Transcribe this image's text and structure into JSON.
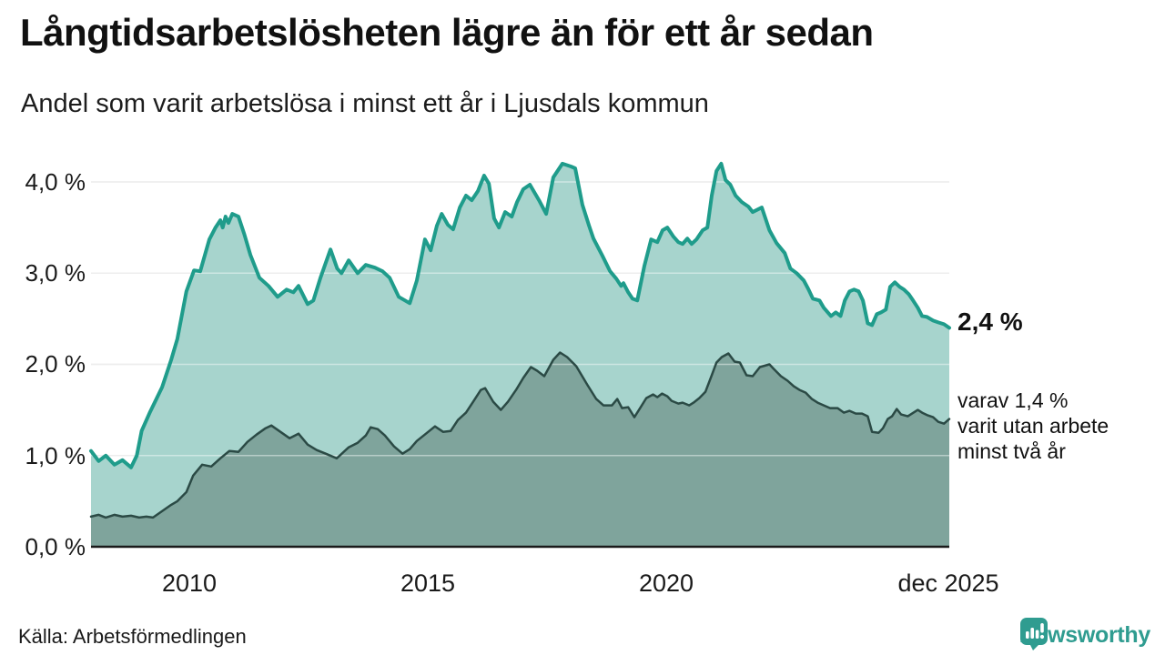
{
  "header": {
    "title": "Långtidsarbetslösheten lägre än för ett år sedan",
    "subtitle": "Andel som varit arbetslösa i minst ett år i Ljusdals kommun"
  },
  "chart_data": {
    "type": "area",
    "title": "Långtidsarbetslösheten lägre än för ett år sedan",
    "subtitle": "Andel som varit arbetslösa i minst ett år i Ljusdals kommun",
    "unit": "%",
    "x_domain": [
      2007.94,
      2025.93
    ],
    "y_domain": [
      0,
      4.0
    ],
    "grid": "horizontal",
    "legend_position": "none",
    "y_ticks": [
      {
        "value": 4.0,
        "label": "4,0 %"
      },
      {
        "value": 3.0,
        "label": "3,0 %"
      },
      {
        "value": 2.0,
        "label": "2,0 %"
      },
      {
        "value": 1.0,
        "label": "1,0 %"
      },
      {
        "value": 0.0,
        "label": "0,0 %"
      }
    ],
    "x_ticks": [
      {
        "value": 2010,
        "label": "2010"
      },
      {
        "value": 2015,
        "label": "2015"
      },
      {
        "value": 2020,
        "label": "2020"
      },
      {
        "value": 2025.93,
        "label": "dec 2025"
      }
    ],
    "series": [
      {
        "name": "arbetslösa minst ett år",
        "stroke": "#1f9c8b",
        "fill": "#a7d4cd",
        "line_width": 4,
        "end_value": "2,4 %",
        "points": [
          [
            2007.94,
            1.05
          ],
          [
            2008.1,
            0.94
          ],
          [
            2008.25,
            1.0
          ],
          [
            2008.43,
            0.9
          ],
          [
            2008.6,
            0.95
          ],
          [
            2008.78,
            0.87
          ],
          [
            2008.9,
            1.0
          ],
          [
            2009.0,
            1.27
          ],
          [
            2009.18,
            1.48
          ],
          [
            2009.31,
            1.62
          ],
          [
            2009.43,
            1.75
          ],
          [
            2009.62,
            2.05
          ],
          [
            2009.75,
            2.28
          ],
          [
            2009.94,
            2.8
          ],
          [
            2010.1,
            3.03
          ],
          [
            2010.23,
            3.02
          ],
          [
            2010.42,
            3.37
          ],
          [
            2010.55,
            3.5
          ],
          [
            2010.65,
            3.58
          ],
          [
            2010.7,
            3.5
          ],
          [
            2010.76,
            3.62
          ],
          [
            2010.82,
            3.55
          ],
          [
            2010.9,
            3.65
          ],
          [
            2011.03,
            3.62
          ],
          [
            2011.15,
            3.43
          ],
          [
            2011.28,
            3.2
          ],
          [
            2011.47,
            2.95
          ],
          [
            2011.66,
            2.86
          ],
          [
            2011.85,
            2.74
          ],
          [
            2012.04,
            2.82
          ],
          [
            2012.18,
            2.79
          ],
          [
            2012.29,
            2.86
          ],
          [
            2012.48,
            2.66
          ],
          [
            2012.6,
            2.7
          ],
          [
            2012.75,
            2.95
          ],
          [
            2012.96,
            3.26
          ],
          [
            2013.1,
            3.05
          ],
          [
            2013.19,
            3.0
          ],
          [
            2013.34,
            3.14
          ],
          [
            2013.53,
            3.0
          ],
          [
            2013.7,
            3.09
          ],
          [
            2013.89,
            3.06
          ],
          [
            2014.05,
            3.02
          ],
          [
            2014.2,
            2.95
          ],
          [
            2014.39,
            2.74
          ],
          [
            2014.62,
            2.67
          ],
          [
            2014.77,
            2.92
          ],
          [
            2014.94,
            3.37
          ],
          [
            2015.06,
            3.25
          ],
          [
            2015.19,
            3.52
          ],
          [
            2015.29,
            3.65
          ],
          [
            2015.42,
            3.53
          ],
          [
            2015.53,
            3.48
          ],
          [
            2015.67,
            3.72
          ],
          [
            2015.8,
            3.85
          ],
          [
            2015.92,
            3.8
          ],
          [
            2016.05,
            3.9
          ],
          [
            2016.18,
            4.07
          ],
          [
            2016.28,
            3.98
          ],
          [
            2016.39,
            3.6
          ],
          [
            2016.49,
            3.5
          ],
          [
            2016.62,
            3.67
          ],
          [
            2016.76,
            3.62
          ],
          [
            2016.87,
            3.78
          ],
          [
            2017.0,
            3.92
          ],
          [
            2017.14,
            3.97
          ],
          [
            2017.33,
            3.8
          ],
          [
            2017.48,
            3.65
          ],
          [
            2017.63,
            4.05
          ],
          [
            2017.82,
            4.2
          ],
          [
            2018.0,
            4.17
          ],
          [
            2018.09,
            4.15
          ],
          [
            2018.24,
            3.75
          ],
          [
            2018.38,
            3.52
          ],
          [
            2018.47,
            3.38
          ],
          [
            2018.66,
            3.19
          ],
          [
            2018.82,
            3.02
          ],
          [
            2018.95,
            2.94
          ],
          [
            2019.05,
            2.86
          ],
          [
            2019.1,
            2.89
          ],
          [
            2019.2,
            2.79
          ],
          [
            2019.29,
            2.72
          ],
          [
            2019.39,
            2.7
          ],
          [
            2019.54,
            3.08
          ],
          [
            2019.68,
            3.37
          ],
          [
            2019.81,
            3.34
          ],
          [
            2019.92,
            3.47
          ],
          [
            2020.02,
            3.5
          ],
          [
            2020.15,
            3.4
          ],
          [
            2020.25,
            3.34
          ],
          [
            2020.34,
            3.32
          ],
          [
            2020.44,
            3.38
          ],
          [
            2020.53,
            3.32
          ],
          [
            2020.63,
            3.37
          ],
          [
            2020.76,
            3.47
          ],
          [
            2020.86,
            3.5
          ],
          [
            2020.95,
            3.85
          ],
          [
            2021.05,
            4.12
          ],
          [
            2021.15,
            4.2
          ],
          [
            2021.24,
            4.02
          ],
          [
            2021.34,
            3.97
          ],
          [
            2021.45,
            3.85
          ],
          [
            2021.58,
            3.78
          ],
          [
            2021.72,
            3.73
          ],
          [
            2021.81,
            3.67
          ],
          [
            2022.0,
            3.72
          ],
          [
            2022.16,
            3.47
          ],
          [
            2022.31,
            3.33
          ],
          [
            2022.48,
            3.22
          ],
          [
            2022.6,
            3.05
          ],
          [
            2022.73,
            3.0
          ],
          [
            2022.88,
            2.92
          ],
          [
            2022.98,
            2.82
          ],
          [
            2023.07,
            2.72
          ],
          [
            2023.21,
            2.7
          ],
          [
            2023.3,
            2.62
          ],
          [
            2023.45,
            2.53
          ],
          [
            2023.55,
            2.57
          ],
          [
            2023.65,
            2.53
          ],
          [
            2023.74,
            2.7
          ],
          [
            2023.84,
            2.8
          ],
          [
            2023.93,
            2.82
          ],
          [
            2024.03,
            2.8
          ],
          [
            2024.12,
            2.7
          ],
          [
            2024.22,
            2.45
          ],
          [
            2024.31,
            2.43
          ],
          [
            2024.41,
            2.55
          ],
          [
            2024.5,
            2.57
          ],
          [
            2024.6,
            2.6
          ],
          [
            2024.69,
            2.85
          ],
          [
            2024.79,
            2.9
          ],
          [
            2024.89,
            2.85
          ],
          [
            2024.98,
            2.82
          ],
          [
            2025.08,
            2.77
          ],
          [
            2025.17,
            2.7
          ],
          [
            2025.27,
            2.62
          ],
          [
            2025.36,
            2.53
          ],
          [
            2025.46,
            2.52
          ],
          [
            2025.59,
            2.48
          ],
          [
            2025.7,
            2.46
          ],
          [
            2025.82,
            2.44
          ],
          [
            2025.93,
            2.4
          ]
        ]
      },
      {
        "name": "varav utan arbete minst två år",
        "stroke": "#2b4a45",
        "fill": "#7fa49c",
        "line_width": 2.5,
        "end_value": "1,4 %",
        "points": [
          [
            2007.94,
            0.33
          ],
          [
            2008.1,
            0.35
          ],
          [
            2008.25,
            0.32
          ],
          [
            2008.43,
            0.35
          ],
          [
            2008.6,
            0.33
          ],
          [
            2008.78,
            0.34
          ],
          [
            2008.95,
            0.32
          ],
          [
            2009.1,
            0.33
          ],
          [
            2009.24,
            0.32
          ],
          [
            2009.43,
            0.39
          ],
          [
            2009.62,
            0.46
          ],
          [
            2009.75,
            0.5
          ],
          [
            2009.94,
            0.6
          ],
          [
            2010.08,
            0.78
          ],
          [
            2010.27,
            0.9
          ],
          [
            2010.46,
            0.88
          ],
          [
            2010.65,
            0.97
          ],
          [
            2010.84,
            1.05
          ],
          [
            2011.03,
            1.04
          ],
          [
            2011.22,
            1.15
          ],
          [
            2011.41,
            1.23
          ],
          [
            2011.6,
            1.3
          ],
          [
            2011.72,
            1.33
          ],
          [
            2011.91,
            1.26
          ],
          [
            2012.1,
            1.19
          ],
          [
            2012.29,
            1.24
          ],
          [
            2012.48,
            1.12
          ],
          [
            2012.67,
            1.06
          ],
          [
            2012.86,
            1.02
          ],
          [
            2013.09,
            0.97
          ],
          [
            2013.34,
            1.09
          ],
          [
            2013.53,
            1.14
          ],
          [
            2013.7,
            1.22
          ],
          [
            2013.8,
            1.31
          ],
          [
            2013.95,
            1.29
          ],
          [
            2014.1,
            1.22
          ],
          [
            2014.29,
            1.1
          ],
          [
            2014.47,
            1.02
          ],
          [
            2014.62,
            1.07
          ],
          [
            2014.77,
            1.16
          ],
          [
            2014.96,
            1.24
          ],
          [
            2015.15,
            1.32
          ],
          [
            2015.32,
            1.26
          ],
          [
            2015.48,
            1.27
          ],
          [
            2015.63,
            1.39
          ],
          [
            2015.8,
            1.47
          ],
          [
            2015.95,
            1.59
          ],
          [
            2016.11,
            1.72
          ],
          [
            2016.2,
            1.74
          ],
          [
            2016.37,
            1.59
          ],
          [
            2016.53,
            1.5
          ],
          [
            2016.68,
            1.59
          ],
          [
            2016.85,
            1.72
          ],
          [
            2017.0,
            1.85
          ],
          [
            2017.16,
            1.97
          ],
          [
            2017.29,
            1.93
          ],
          [
            2017.44,
            1.87
          ],
          [
            2017.63,
            2.05
          ],
          [
            2017.77,
            2.13
          ],
          [
            2017.92,
            2.08
          ],
          [
            2018.11,
            1.98
          ],
          [
            2018.34,
            1.78
          ],
          [
            2018.53,
            1.62
          ],
          [
            2018.68,
            1.55
          ],
          [
            2018.86,
            1.55
          ],
          [
            2018.97,
            1.62
          ],
          [
            2019.07,
            1.52
          ],
          [
            2019.2,
            1.53
          ],
          [
            2019.33,
            1.42
          ],
          [
            2019.45,
            1.52
          ],
          [
            2019.58,
            1.63
          ],
          [
            2019.72,
            1.67
          ],
          [
            2019.81,
            1.64
          ],
          [
            2019.91,
            1.68
          ],
          [
            2020.02,
            1.65
          ],
          [
            2020.11,
            1.6
          ],
          [
            2020.25,
            1.57
          ],
          [
            2020.34,
            1.58
          ],
          [
            2020.48,
            1.55
          ],
          [
            2020.57,
            1.58
          ],
          [
            2020.69,
            1.63
          ],
          [
            2020.82,
            1.7
          ],
          [
            2020.95,
            1.88
          ],
          [
            2021.05,
            2.02
          ],
          [
            2021.16,
            2.08
          ],
          [
            2021.3,
            2.12
          ],
          [
            2021.43,
            2.03
          ],
          [
            2021.54,
            2.02
          ],
          [
            2021.68,
            1.88
          ],
          [
            2021.81,
            1.87
          ],
          [
            2021.96,
            1.97
          ],
          [
            2022.16,
            2.0
          ],
          [
            2022.25,
            1.95
          ],
          [
            2022.4,
            1.87
          ],
          [
            2022.54,
            1.82
          ],
          [
            2022.67,
            1.76
          ],
          [
            2022.79,
            1.72
          ],
          [
            2022.92,
            1.69
          ],
          [
            2023.05,
            1.62
          ],
          [
            2023.17,
            1.58
          ],
          [
            2023.3,
            1.55
          ],
          [
            2023.43,
            1.52
          ],
          [
            2023.59,
            1.52
          ],
          [
            2023.72,
            1.47
          ],
          [
            2023.84,
            1.49
          ],
          [
            2023.97,
            1.46
          ],
          [
            2024.1,
            1.46
          ],
          [
            2024.22,
            1.43
          ],
          [
            2024.31,
            1.26
          ],
          [
            2024.45,
            1.25
          ],
          [
            2024.54,
            1.3
          ],
          [
            2024.64,
            1.4
          ],
          [
            2024.73,
            1.43
          ],
          [
            2024.83,
            1.51
          ],
          [
            2024.92,
            1.45
          ],
          [
            2025.06,
            1.43
          ],
          [
            2025.15,
            1.46
          ],
          [
            2025.27,
            1.5
          ],
          [
            2025.36,
            1.47
          ],
          [
            2025.48,
            1.44
          ],
          [
            2025.59,
            1.42
          ],
          [
            2025.7,
            1.37
          ],
          [
            2025.82,
            1.35
          ],
          [
            2025.93,
            1.4
          ]
        ]
      }
    ],
    "annotations": {
      "primary": "2,4 %",
      "secondary_lines": [
        "varav 1,4 %",
        "varit utan arbete",
        "minst två år"
      ]
    }
  },
  "footer": {
    "source": "Källa: Arbetsförmedlingen",
    "brand": "Newsworthy"
  },
  "colors": {
    "accent_teal": "#1f9c8b",
    "brand_teal": "#2f9c90",
    "dark_line": "#2b4a45",
    "light_fill": "#a7d4cd",
    "dark_fill": "#7fa49c",
    "grid": "#dedede",
    "baseline": "#1a1a1a",
    "text": "#1a1a1a"
  }
}
